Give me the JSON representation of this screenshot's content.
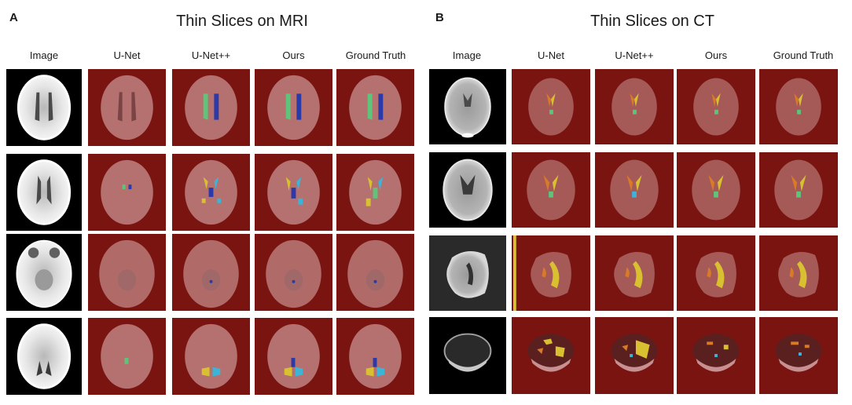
{
  "panels": [
    {
      "letter": "A",
      "title": "Thin Slices on MRI",
      "columns": [
        "Image",
        "U-Net",
        "U-Net++",
        "Ours",
        "Ground Truth"
      ],
      "rows": 4
    },
    {
      "letter": "B",
      "title": "Thin Slices on CT",
      "columns": [
        "Image",
        "U-Net",
        "U-Net++",
        "Ours",
        "Ground Truth"
      ],
      "rows": 4
    }
  ],
  "colors": {
    "mask_background": "#7a1410",
    "class_green": "#5fc47a",
    "class_blue": "#2a3aa8",
    "class_cyan": "#3cb4d8",
    "class_yellow": "#d8c030",
    "class_orange": "#d87a28"
  }
}
